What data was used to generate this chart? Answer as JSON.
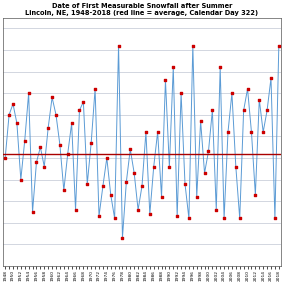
{
  "title_line1": "Date of First Measurable Snowfall after Summer",
  "title_line2": "Lincoln, NE, 1948-2018 (red line = average, Calendar Day 322)",
  "average": 322,
  "years": [
    1948,
    1949,
    1950,
    1951,
    1952,
    1953,
    1954,
    1955,
    1956,
    1957,
    1958,
    1959,
    1960,
    1961,
    1962,
    1963,
    1964,
    1965,
    1966,
    1967,
    1968,
    1969,
    1970,
    1971,
    1972,
    1973,
    1974,
    1975,
    1976,
    1977,
    1978,
    1979,
    1980,
    1981,
    1982,
    1983,
    1984,
    1985,
    1986,
    1987,
    1988,
    1989,
    1990,
    1991,
    1992,
    1993,
    1994,
    1995,
    1996,
    1997,
    1998,
    1999,
    2000,
    2001,
    2002,
    2003,
    2004,
    2005,
    2006,
    2007,
    2008,
    2009,
    2010,
    2011,
    2012,
    2013,
    2014,
    2015,
    2016,
    2017,
    2018
  ],
  "values": [
    320,
    340,
    345,
    336,
    310,
    328,
    350,
    295,
    318,
    325,
    316,
    334,
    348,
    340,
    326,
    305,
    322,
    336,
    296,
    342,
    346,
    308,
    327,
    352,
    293,
    307,
    320,
    303,
    292,
    372,
    283,
    309,
    324,
    313,
    296,
    307,
    332,
    294,
    316,
    332,
    302,
    356,
    316,
    362,
    293,
    350,
    308,
    292,
    372,
    302,
    337,
    313,
    323,
    342,
    296,
    362,
    292,
    332,
    350,
    316,
    292,
    342,
    352,
    332,
    303,
    347,
    332,
    342,
    357,
    292,
    372
  ],
  "line_color": "#5b9bd5",
  "marker_color": "#cc0000",
  "avg_line_color": "#aa0000",
  "background_color": "#ffffff",
  "grid_color": "#b0b8c8",
  "ylim_min": 270,
  "ylim_max": 385,
  "ytick_interval": 10
}
